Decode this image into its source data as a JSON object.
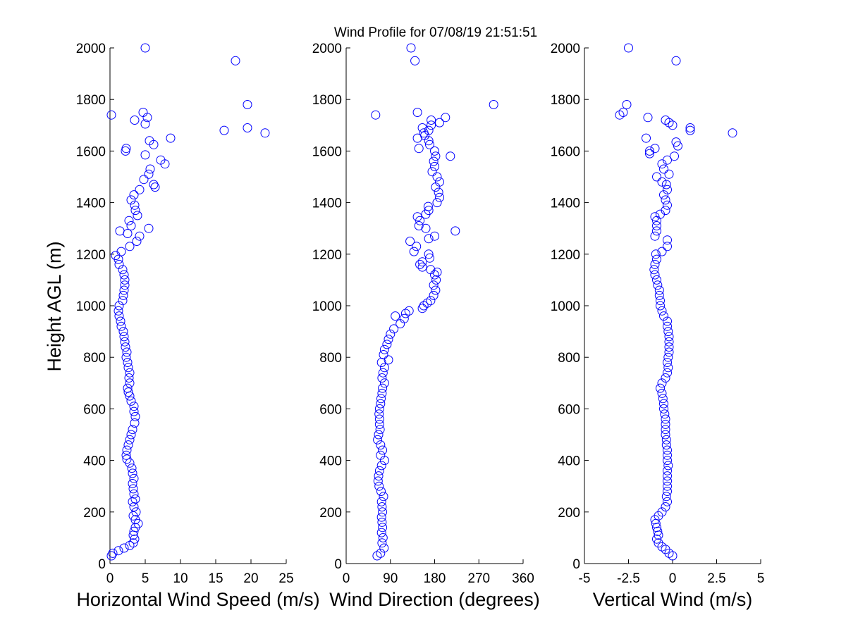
{
  "figure": {
    "title": "Wind Profile for  07/08/19 21:51:51",
    "ylabel": "Height AGL (m)",
    "marker_color": "#0000ff"
  },
  "chart_data": [
    {
      "type": "scatter",
      "xlabel": "Horizontal Wind Speed (m/s)",
      "xlim": [
        0,
        25
      ],
      "ylim": [
        0,
        2000
      ],
      "xticks": [
        0,
        5,
        10,
        15,
        20,
        25
      ],
      "xtick_labels": [
        "0",
        "5",
        "10",
        "15",
        "20",
        "25"
      ],
      "yticks": [
        0,
        200,
        400,
        600,
        800,
        1000,
        1200,
        1400,
        1600,
        1800,
        2000
      ],
      "grid": false,
      "points": [
        [
          0.2,
          30
        ],
        [
          0.4,
          40
        ],
        [
          1.2,
          50
        ],
        [
          2.0,
          60
        ],
        [
          2.8,
          70
        ],
        [
          3.3,
          80
        ],
        [
          3.5,
          95
        ],
        [
          3.3,
          110
        ],
        [
          3.4,
          125
        ],
        [
          3.6,
          140
        ],
        [
          4.0,
          155
        ],
        [
          3.6,
          170
        ],
        [
          3.3,
          185
        ],
        [
          3.7,
          200
        ],
        [
          3.4,
          220
        ],
        [
          3.2,
          240
        ],
        [
          3.6,
          250
        ],
        [
          3.4,
          270
        ],
        [
          3.3,
          290
        ],
        [
          3.2,
          310
        ],
        [
          3.4,
          330
        ],
        [
          3.2,
          350
        ],
        [
          3.1,
          370
        ],
        [
          2.8,
          390
        ],
        [
          2.4,
          405
        ],
        [
          2.3,
          420
        ],
        [
          2.4,
          440
        ],
        [
          2.6,
          460
        ],
        [
          2.8,
          480
        ],
        [
          3.0,
          500
        ],
        [
          3.2,
          520
        ],
        [
          3.5,
          545
        ],
        [
          3.6,
          570
        ],
        [
          3.4,
          590
        ],
        [
          3.4,
          610
        ],
        [
          3.0,
          630
        ],
        [
          2.8,
          650
        ],
        [
          2.6,
          665
        ],
        [
          2.5,
          680
        ],
        [
          2.8,
          700
        ],
        [
          2.7,
          720
        ],
        [
          2.8,
          740
        ],
        [
          2.6,
          760
        ],
        [
          2.5,
          780
        ],
        [
          2.3,
          800
        ],
        [
          2.4,
          820
        ],
        [
          2.2,
          840
        ],
        [
          2.1,
          860
        ],
        [
          2.0,
          880
        ],
        [
          1.9,
          900
        ],
        [
          1.6,
          920
        ],
        [
          1.5,
          940
        ],
        [
          1.3,
          960
        ],
        [
          1.2,
          980
        ],
        [
          1.3,
          1000
        ],
        [
          1.8,
          1020
        ],
        [
          1.9,
          1040
        ],
        [
          2.0,
          1060
        ],
        [
          2.1,
          1080
        ],
        [
          2.1,
          1100
        ],
        [
          2.0,
          1120
        ],
        [
          1.8,
          1140
        ],
        [
          1.3,
          1160
        ],
        [
          1.2,
          1180
        ],
        [
          0.8,
          1195
        ],
        [
          1.6,
          1210
        ],
        [
          2.8,
          1230
        ],
        [
          4.2,
          1270
        ],
        [
          3.8,
          1250
        ],
        [
          2.5,
          1280
        ],
        [
          1.4,
          1290
        ],
        [
          5.5,
          1300
        ],
        [
          3.0,
          1310
        ],
        [
          2.7,
          1330
        ],
        [
          3.9,
          1350
        ],
        [
          3.6,
          1370
        ],
        [
          3.5,
          1390
        ],
        [
          3.0,
          1410
        ],
        [
          3.4,
          1430
        ],
        [
          4.2,
          1450
        ],
        [
          6.4,
          1460
        ],
        [
          6.2,
          1470
        ],
        [
          4.8,
          1490
        ],
        [
          5.5,
          1510
        ],
        [
          5.7,
          1530
        ],
        [
          7.8,
          1550
        ],
        [
          7.2,
          1565
        ],
        [
          5.0,
          1585
        ],
        [
          2.2,
          1600
        ],
        [
          2.3,
          1610
        ],
        [
          6.2,
          1625
        ],
        [
          5.6,
          1640
        ],
        [
          8.6,
          1650
        ],
        [
          22.0,
          1670
        ],
        [
          16.2,
          1680
        ],
        [
          19.5,
          1690
        ],
        [
          5.0,
          1705
        ],
        [
          3.5,
          1720
        ],
        [
          5.3,
          1730
        ],
        [
          0.2,
          1740
        ],
        [
          4.7,
          1750
        ],
        [
          19.5,
          1780
        ],
        [
          17.8,
          1950
        ],
        [
          5.0,
          2000
        ]
      ]
    },
    {
      "type": "scatter",
      "xlabel": "Wind Direction (degrees)",
      "xlim": [
        0,
        360
      ],
      "ylim": [
        0,
        2000
      ],
      "xticks": [
        0,
        90,
        180,
        270,
        360
      ],
      "xtick_labels": [
        "0",
        "90",
        "180",
        "270",
        "360"
      ],
      "yticks": [
        0,
        200,
        400,
        600,
        800,
        1000,
        1200,
        1400,
        1600,
        1800,
        2000
      ],
      "grid": false,
      "points": [
        [
          63,
          30
        ],
        [
          70,
          40
        ],
        [
          77,
          60
        ],
        [
          73,
          80
        ],
        [
          75,
          100
        ],
        [
          72,
          120
        ],
        [
          74,
          140
        ],
        [
          73,
          160
        ],
        [
          72,
          180
        ],
        [
          74,
          200
        ],
        [
          73,
          220
        ],
        [
          72,
          240
        ],
        [
          76,
          260
        ],
        [
          71,
          280
        ],
        [
          67,
          300
        ],
        [
          65,
          320
        ],
        [
          66,
          340
        ],
        [
          68,
          360
        ],
        [
          72,
          380
        ],
        [
          78,
          400
        ],
        [
          70,
          420
        ],
        [
          74,
          440
        ],
        [
          70,
          460
        ],
        [
          64,
          480
        ],
        [
          66,
          500
        ],
        [
          69,
          520
        ],
        [
          68,
          540
        ],
        [
          68,
          560
        ],
        [
          67,
          580
        ],
        [
          68,
          600
        ],
        [
          70,
          620
        ],
        [
          71,
          640
        ],
        [
          73,
          660
        ],
        [
          74,
          680
        ],
        [
          78,
          700
        ],
        [
          73,
          720
        ],
        [
          75,
          740
        ],
        [
          78,
          760
        ],
        [
          72,
          780
        ],
        [
          86,
          790
        ],
        [
          76,
          810
        ],
        [
          78,
          830
        ],
        [
          83,
          850
        ],
        [
          86,
          870
        ],
        [
          90,
          890
        ],
        [
          97,
          910
        ],
        [
          110,
          930
        ],
        [
          118,
          950
        ],
        [
          100,
          960
        ],
        [
          121,
          970
        ],
        [
          128,
          980
        ],
        [
          155,
          990
        ],
        [
          158,
          1000
        ],
        [
          165,
          1010
        ],
        [
          172,
          1020
        ],
        [
          178,
          1040
        ],
        [
          182,
          1060
        ],
        [
          178,
          1080
        ],
        [
          183,
          1100
        ],
        [
          180,
          1120
        ],
        [
          185,
          1130
        ],
        [
          172,
          1140
        ],
        [
          155,
          1150
        ],
        [
          150,
          1160
        ],
        [
          155,
          1170
        ],
        [
          170,
          1185
        ],
        [
          168,
          1200
        ],
        [
          138,
          1210
        ],
        [
          143,
          1230
        ],
        [
          130,
          1250
        ],
        [
          168,
          1260
        ],
        [
          180,
          1270
        ],
        [
          222,
          1290
        ],
        [
          162,
          1300
        ],
        [
          148,
          1310
        ],
        [
          150,
          1330
        ],
        [
          145,
          1345
        ],
        [
          162,
          1355
        ],
        [
          168,
          1370
        ],
        [
          167,
          1385
        ],
        [
          185,
          1400
        ],
        [
          190,
          1420
        ],
        [
          188,
          1440
        ],
        [
          182,
          1460
        ],
        [
          190,
          1480
        ],
        [
          185,
          1500
        ],
        [
          175,
          1520
        ],
        [
          180,
          1540
        ],
        [
          178,
          1560
        ],
        [
          182,
          1580
        ],
        [
          212,
          1580
        ],
        [
          180,
          1600
        ],
        [
          148,
          1610
        ],
        [
          170,
          1625
        ],
        [
          168,
          1640
        ],
        [
          145,
          1650
        ],
        [
          160,
          1660
        ],
        [
          158,
          1670
        ],
        [
          168,
          1680
        ],
        [
          155,
          1690
        ],
        [
          173,
          1700
        ],
        [
          190,
          1710
        ],
        [
          173,
          1720
        ],
        [
          202,
          1730
        ],
        [
          60,
          1740
        ],
        [
          145,
          1750
        ],
        [
          300,
          1780
        ],
        [
          140,
          1950
        ],
        [
          132,
          2000
        ]
      ]
    },
    {
      "type": "scatter",
      "xlabel": "Vertical Wind (m/s)",
      "xlim": [
        -5,
        5
      ],
      "ylim": [
        0,
        2000
      ],
      "xticks": [
        -5,
        -2.5,
        0,
        2.5,
        5
      ],
      "xtick_labels": [
        "-5",
        "-2.5",
        "0",
        "2.5",
        "5"
      ],
      "yticks": [
        0,
        200,
        400,
        600,
        800,
        1000,
        1200,
        1400,
        1600,
        1800,
        2000
      ],
      "grid": false,
      "points": [
        [
          0.0,
          30
        ],
        [
          -0.2,
          40
        ],
        [
          -0.4,
          55
        ],
        [
          -0.6,
          65
        ],
        [
          -0.8,
          80
        ],
        [
          -0.9,
          95
        ],
        [
          -0.8,
          110
        ],
        [
          -0.85,
          125
        ],
        [
          -0.9,
          140
        ],
        [
          -0.95,
          155
        ],
        [
          -1.0,
          170
        ],
        [
          -0.8,
          185
        ],
        [
          -0.6,
          200
        ],
        [
          -0.4,
          220
        ],
        [
          -0.3,
          240
        ],
        [
          -0.35,
          260
        ],
        [
          -0.3,
          280
        ],
        [
          -0.3,
          300
        ],
        [
          -0.3,
          320
        ],
        [
          -0.3,
          340
        ],
        [
          -0.3,
          360
        ],
        [
          -0.25,
          380
        ],
        [
          -0.3,
          400
        ],
        [
          -0.3,
          420
        ],
        [
          -0.3,
          440
        ],
        [
          -0.35,
          460
        ],
        [
          -0.35,
          480
        ],
        [
          -0.4,
          500
        ],
        [
          -0.4,
          520
        ],
        [
          -0.4,
          540
        ],
        [
          -0.4,
          560
        ],
        [
          -0.45,
          580
        ],
        [
          -0.5,
          600
        ],
        [
          -0.5,
          620
        ],
        [
          -0.55,
          640
        ],
        [
          -0.6,
          660
        ],
        [
          -0.7,
          680
        ],
        [
          -0.6,
          700
        ],
        [
          -0.4,
          720
        ],
        [
          -0.3,
          740
        ],
        [
          -0.25,
          760
        ],
        [
          -0.3,
          780
        ],
        [
          -0.25,
          800
        ],
        [
          -0.2,
          820
        ],
        [
          -0.2,
          840
        ],
        [
          -0.2,
          860
        ],
        [
          -0.2,
          880
        ],
        [
          -0.25,
          900
        ],
        [
          -0.3,
          920
        ],
        [
          -0.3,
          940
        ],
        [
          -0.5,
          960
        ],
        [
          -0.6,
          980
        ],
        [
          -0.7,
          1000
        ],
        [
          -0.7,
          1020
        ],
        [
          -0.75,
          1040
        ],
        [
          -0.75,
          1060
        ],
        [
          -0.85,
          1080
        ],
        [
          -0.9,
          1100
        ],
        [
          -1.0,
          1120
        ],
        [
          -1.05,
          1140
        ],
        [
          -1.0,
          1160
        ],
        [
          -0.9,
          1180
        ],
        [
          -0.95,
          1200
        ],
        [
          -0.6,
          1210
        ],
        [
          -0.3,
          1230
        ],
        [
          -0.3,
          1255
        ],
        [
          -1.0,
          1270
        ],
        [
          -0.9,
          1290
        ],
        [
          -0.9,
          1310
        ],
        [
          -0.9,
          1330
        ],
        [
          -1.0,
          1345
        ],
        [
          -0.7,
          1355
        ],
        [
          -0.4,
          1370
        ],
        [
          -0.3,
          1390
        ],
        [
          -0.4,
          1410
        ],
        [
          -0.5,
          1430
        ],
        [
          -0.3,
          1450
        ],
        [
          -0.35,
          1470
        ],
        [
          -0.6,
          1480
        ],
        [
          -0.9,
          1500
        ],
        [
          -0.2,
          1510
        ],
        [
          -0.5,
          1530
        ],
        [
          -0.6,
          1550
        ],
        [
          -0.3,
          1565
        ],
        [
          0.1,
          1580
        ],
        [
          -1.3,
          1590
        ],
        [
          -1.3,
          1600
        ],
        [
          -1.0,
          1610
        ],
        [
          0.3,
          1620
        ],
        [
          0.2,
          1635
        ],
        [
          -1.5,
          1650
        ],
        [
          3.4,
          1670
        ],
        [
          1.0,
          1680
        ],
        [
          1.0,
          1690
        ],
        [
          0.0,
          1700
        ],
        [
          -0.2,
          1710
        ],
        [
          -0.4,
          1720
        ],
        [
          -1.4,
          1730
        ],
        [
          -3.0,
          1740
        ],
        [
          -2.8,
          1750
        ],
        [
          -2.6,
          1780
        ],
        [
          0.2,
          1950
        ],
        [
          -2.5,
          2000
        ]
      ]
    }
  ]
}
